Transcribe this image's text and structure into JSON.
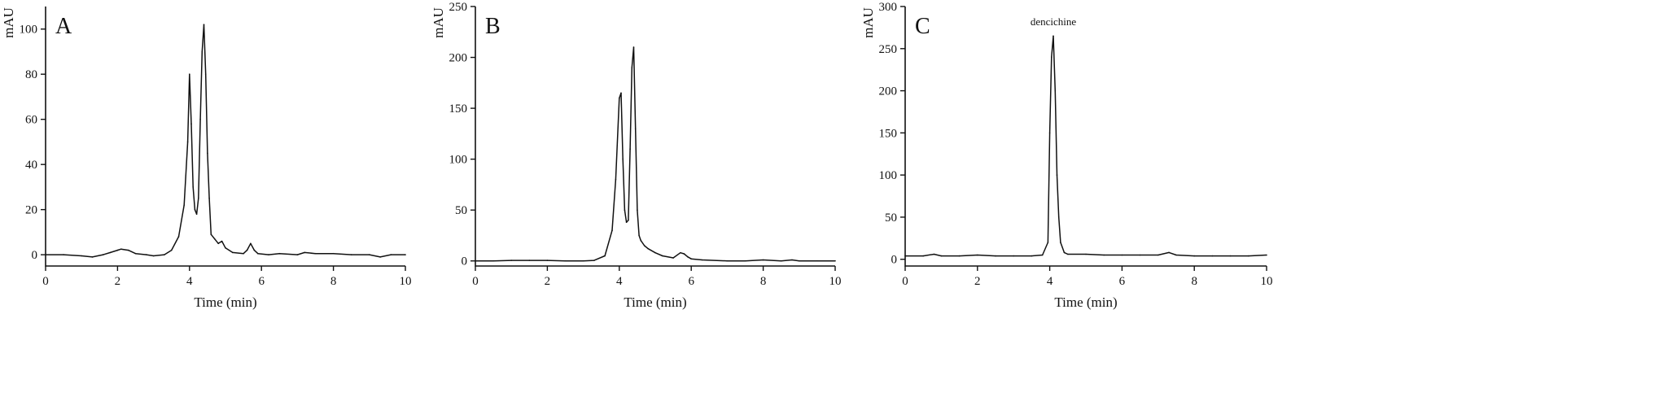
{
  "chart_data": [
    {
      "type": "line",
      "panel_label": "A",
      "xlabel": "Time (min)",
      "ylabel": "mAU",
      "xlim": [
        0,
        10
      ],
      "ylim": [
        -5,
        110
      ],
      "xticks": [
        0,
        2,
        4,
        6,
        8,
        10
      ],
      "yticks": [
        0,
        20,
        40,
        60,
        80,
        100
      ],
      "grid": false,
      "annotations": [],
      "series": [
        {
          "x": [
            0,
            0.5,
            1.0,
            1.3,
            1.6,
            1.8,
            2.0,
            2.1,
            2.3,
            2.5,
            2.8,
            3.0,
            3.3,
            3.5,
            3.7,
            3.85,
            3.95,
            4.0,
            4.05,
            4.1,
            4.15,
            4.2,
            4.25,
            4.3,
            4.35,
            4.4,
            4.45,
            4.5,
            4.55,
            4.6,
            4.7,
            4.8,
            4.9,
            5.0,
            5.2,
            5.5,
            5.6,
            5.7,
            5.8,
            5.9,
            6.2,
            6.5,
            7.0,
            7.2,
            7.5,
            8.0,
            8.5,
            9.0,
            9.3,
            9.6,
            10.0
          ],
          "y": [
            0,
            0,
            -0.5,
            -1,
            0,
            1,
            2,
            2.5,
            2,
            0.5,
            0,
            -0.5,
            0,
            2,
            8,
            22,
            50,
            80,
            58,
            30,
            20,
            18,
            25,
            60,
            90,
            102,
            80,
            45,
            25,
            9,
            7,
            5,
            6,
            3,
            1,
            0.5,
            2,
            5,
            2,
            0.5,
            0,
            0.5,
            0,
            1,
            0.5,
            0.5,
            0,
            0,
            -1,
            0,
            0
          ]
        }
      ]
    },
    {
      "type": "line",
      "panel_label": "B",
      "xlabel": "Time (min)",
      "ylabel": "mAU",
      "xlim": [
        0,
        10
      ],
      "ylim": [
        -5,
        250
      ],
      "xticks": [
        0,
        2,
        4,
        6,
        8,
        10
      ],
      "yticks": [
        0,
        50,
        100,
        150,
        200,
        250
      ],
      "grid": false,
      "annotations": [],
      "series": [
        {
          "x": [
            0,
            0.5,
            1.0,
            1.5,
            2.0,
            2.5,
            3.0,
            3.3,
            3.6,
            3.8,
            3.9,
            4.0,
            4.05,
            4.1,
            4.15,
            4.2,
            4.25,
            4.3,
            4.35,
            4.4,
            4.45,
            4.5,
            4.55,
            4.6,
            4.7,
            4.8,
            5.0,
            5.2,
            5.5,
            5.7,
            5.8,
            5.9,
            6.0,
            6.3,
            7.0,
            7.5,
            8.0,
            8.5,
            8.8,
            9.0,
            9.5,
            10.0
          ],
          "y": [
            0,
            0,
            0.5,
            0.5,
            0.5,
            0,
            0,
            0.5,
            5,
            30,
            80,
            160,
            165,
            100,
            50,
            38,
            40,
            110,
            190,
            210,
            130,
            50,
            25,
            20,
            15,
            12,
            8,
            5,
            3,
            8,
            7,
            4,
            2,
            1,
            0,
            0,
            1,
            0,
            1,
            0,
            0,
            0
          ]
        }
      ]
    },
    {
      "type": "line",
      "panel_label": "C",
      "xlabel": "Time (min)",
      "ylabel": "mAU",
      "xlim": [
        0,
        10
      ],
      "ylim": [
        -8,
        300
      ],
      "xticks": [
        0,
        2,
        4,
        6,
        8,
        10
      ],
      "yticks": [
        0,
        50,
        100,
        150,
        200,
        250,
        300
      ],
      "grid": false,
      "annotations": [
        {
          "text": "dencichine",
          "x": 4.1,
          "y": 278
        }
      ],
      "series": [
        {
          "x": [
            0,
            0.5,
            0.8,
            1.0,
            1.5,
            2.0,
            2.5,
            3.0,
            3.5,
            3.8,
            3.95,
            4.0,
            4.05,
            4.1,
            4.15,
            4.2,
            4.25,
            4.3,
            4.4,
            4.5,
            5.0,
            5.5,
            6.0,
            6.5,
            7.0,
            7.3,
            7.5,
            8.0,
            8.5,
            9.0,
            9.5,
            10.0
          ],
          "y": [
            4,
            4,
            6,
            4,
            4,
            5,
            4,
            4,
            4,
            5,
            20,
            150,
            240,
            265,
            200,
            100,
            50,
            20,
            8,
            6,
            6,
            5,
            5,
            5,
            5,
            8,
            5,
            4,
            4,
            4,
            4,
            5
          ]
        }
      ]
    }
  ]
}
